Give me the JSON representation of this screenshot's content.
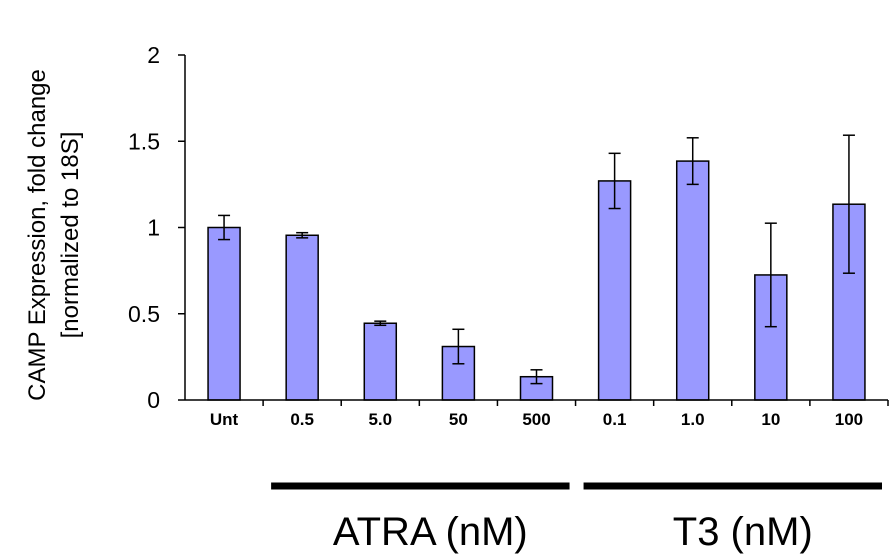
{
  "chart_data": {
    "type": "bar",
    "title": "",
    "ylabel": [
      "CAMP Expression, fold change",
      "[normalized to 18S]"
    ],
    "xlabel": "",
    "ylim": [
      0,
      2
    ],
    "yticks": [
      "0",
      "0.5",
      "1",
      "1.5",
      "2"
    ],
    "categories": [
      "Unt",
      "0.5",
      "5.0",
      "50",
      "500",
      "0.1",
      "1.0",
      "10",
      "100"
    ],
    "values": [
      1.0,
      0.955,
      0.445,
      0.31,
      0.135,
      1.27,
      1.385,
      0.725,
      1.135
    ],
    "errors": [
      0.07,
      0.015,
      0.012,
      0.1,
      0.04,
      0.16,
      0.135,
      0.3,
      0.4
    ],
    "bar_color": "#9999ff",
    "groups": [
      {
        "label": "ATRA (nM)",
        "categories": [
          "0.5",
          "5.0",
          "50",
          "500"
        ]
      },
      {
        "label": "T3 (nM)",
        "categories": [
          "0.1",
          "1.0",
          "10",
          "100"
        ]
      }
    ]
  }
}
